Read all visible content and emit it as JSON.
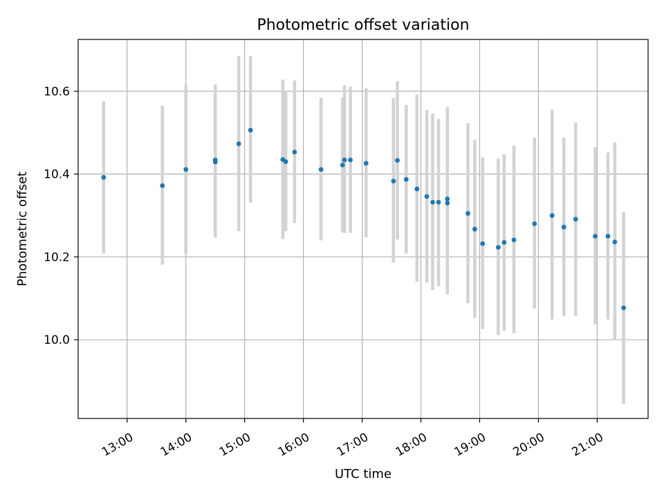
{
  "chart_data": {
    "type": "scatter",
    "title": "Photometric offset variation",
    "xlabel": "UTC time",
    "ylabel": "Photometric offset",
    "xlim": [
      "12:10",
      "21:52"
    ],
    "ylim": [
      9.81,
      10.725
    ],
    "x_ticks": [
      "13:00",
      "14:00",
      "15:00",
      "16:00",
      "17:00",
      "18:00",
      "19:00",
      "20:00",
      "21:00"
    ],
    "y_ticks": [
      "10.0",
      "10.2",
      "10.4",
      "10.6"
    ],
    "grid": true,
    "marker_color": "#1f77b4",
    "errorbar_color": "#d3d3d3",
    "points": [
      {
        "t": "12:36",
        "y": 10.392,
        "lo": 10.208,
        "hi": 10.576
      },
      {
        "t": "13:36",
        "y": 10.372,
        "lo": 10.181,
        "hi": 10.565
      },
      {
        "t": "14:00",
        "y": 10.411,
        "lo": 10.207,
        "hi": 10.616
      },
      {
        "t": "14:30",
        "y": 10.434,
        "lo": 10.247,
        "hi": 10.616
      },
      {
        "t": "14:30",
        "y": 10.429,
        "lo": 10.247,
        "hi": 10.616
      },
      {
        "t": "14:54",
        "y": 10.473,
        "lo": 10.262,
        "hi": 10.685
      },
      {
        "t": "15:06",
        "y": 10.506,
        "lo": 10.331,
        "hi": 10.685
      },
      {
        "t": "15:39",
        "y": 10.435,
        "lo": 10.243,
        "hi": 10.628
      },
      {
        "t": "15:42",
        "y": 10.43,
        "lo": 10.262,
        "hi": 10.601
      },
      {
        "t": "15:51",
        "y": 10.453,
        "lo": 10.282,
        "hi": 10.626
      },
      {
        "t": "16:18",
        "y": 10.411,
        "lo": 10.24,
        "hi": 10.584
      },
      {
        "t": "16:40",
        "y": 10.422,
        "lo": 10.26,
        "hi": 10.585
      },
      {
        "t": "16:42",
        "y": 10.434,
        "lo": 10.258,
        "hi": 10.614
      },
      {
        "t": "16:48",
        "y": 10.434,
        "lo": 10.258,
        "hi": 10.611
      },
      {
        "t": "17:04",
        "y": 10.426,
        "lo": 10.247,
        "hi": 10.607
      },
      {
        "t": "17:32",
        "y": 10.383,
        "lo": 10.186,
        "hi": 10.583
      },
      {
        "t": "17:36",
        "y": 10.433,
        "lo": 10.242,
        "hi": 10.624
      },
      {
        "t": "17:45",
        "y": 10.387,
        "lo": 10.208,
        "hi": 10.567
      },
      {
        "t": "17:56",
        "y": 10.364,
        "lo": 10.14,
        "hi": 10.592
      },
      {
        "t": "18:06",
        "y": 10.346,
        "lo": 10.138,
        "hi": 10.555
      },
      {
        "t": "18:12",
        "y": 10.332,
        "lo": 10.12,
        "hi": 10.546
      },
      {
        "t": "18:18",
        "y": 10.332,
        "lo": 10.129,
        "hi": 10.533
      },
      {
        "t": "18:27",
        "y": 10.34,
        "lo": 10.11,
        "hi": 10.562
      },
      {
        "t": "18:27",
        "y": 10.33,
        "lo": 10.11,
        "hi": 10.549
      },
      {
        "t": "18:48",
        "y": 10.305,
        "lo": 10.088,
        "hi": 10.523
      },
      {
        "t": "18:55",
        "y": 10.267,
        "lo": 10.053,
        "hi": 10.483
      },
      {
        "t": "19:03",
        "y": 10.232,
        "lo": 10.026,
        "hi": 10.44
      },
      {
        "t": "19:19",
        "y": 10.223,
        "lo": 10.011,
        "hi": 10.437
      },
      {
        "t": "19:25",
        "y": 10.235,
        "lo": 10.021,
        "hi": 10.448
      },
      {
        "t": "19:35",
        "y": 10.241,
        "lo": 10.016,
        "hi": 10.469
      },
      {
        "t": "19:56",
        "y": 10.28,
        "lo": 10.076,
        "hi": 10.488
      },
      {
        "t": "20:14",
        "y": 10.3,
        "lo": 10.049,
        "hi": 10.555
      },
      {
        "t": "20:26",
        "y": 10.272,
        "lo": 10.057,
        "hi": 10.488
      },
      {
        "t": "20:38",
        "y": 10.291,
        "lo": 10.057,
        "hi": 10.524
      },
      {
        "t": "20:58",
        "y": 10.25,
        "lo": 10.037,
        "hi": 10.465
      },
      {
        "t": "21:11",
        "y": 10.25,
        "lo": 10.049,
        "hi": 10.452
      },
      {
        "t": "21:18",
        "y": 10.236,
        "lo": 10.0,
        "hi": 10.476
      },
      {
        "t": "21:27",
        "y": 10.077,
        "lo": 9.845,
        "hi": 10.308
      }
    ]
  }
}
